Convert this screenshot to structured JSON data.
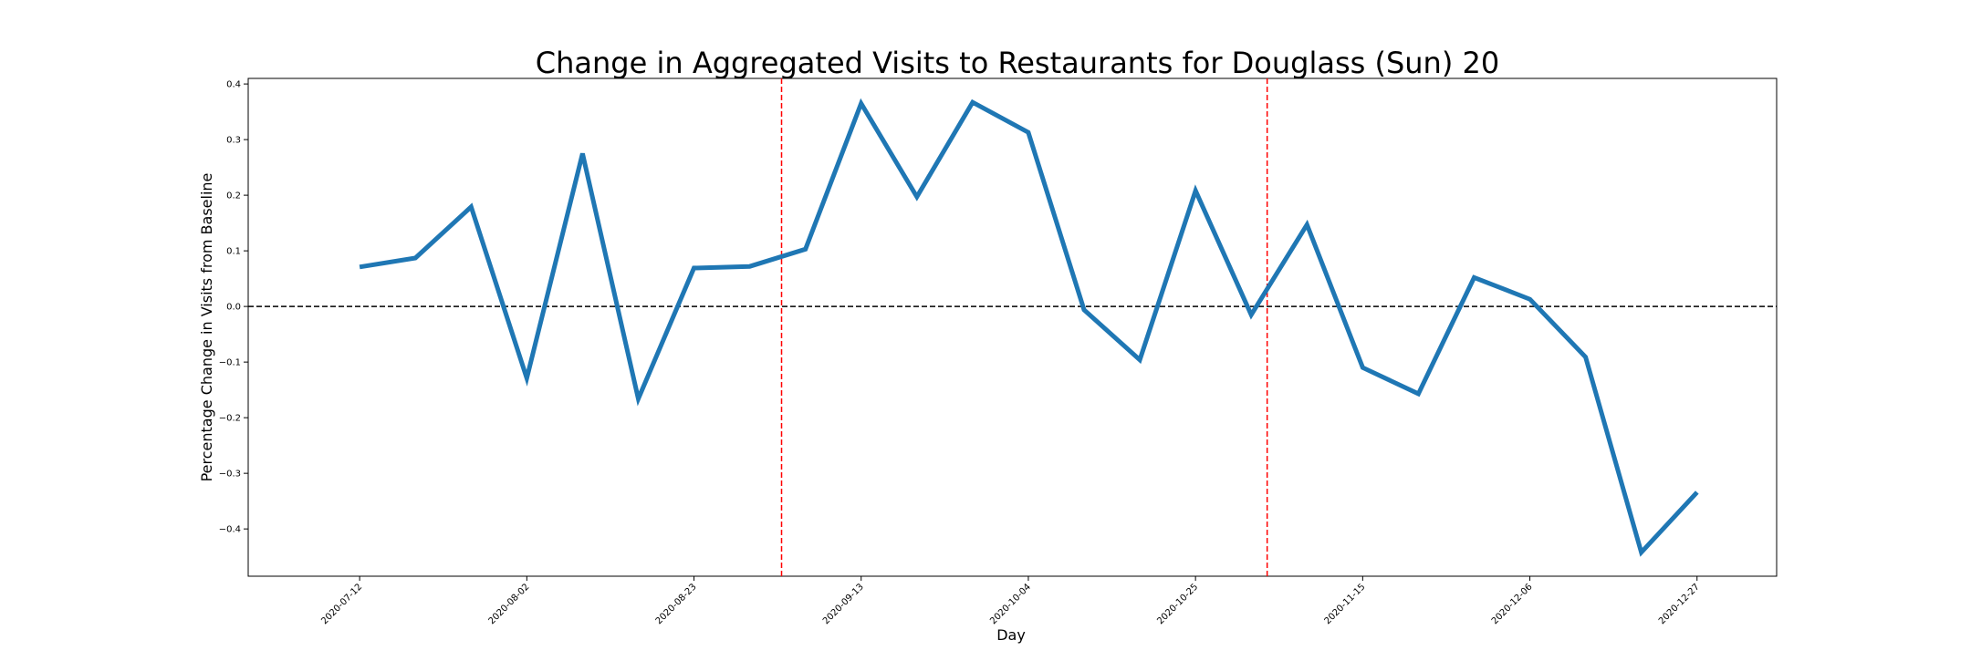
{
  "chart_data": {
    "type": "line",
    "title": "Change in Aggregated Visits to Restaurants for Douglass (Sun) 20",
    "xlabel": "Day",
    "ylabel": "Percentage Change in Visits from Baseline",
    "xlim": [
      "2020-06-28",
      "2021-01-06"
    ],
    "ylim": [
      -0.485,
      0.41
    ],
    "grid": false,
    "legend": "none",
    "x_ticks": [
      "2020-07-12",
      "2020-08-02",
      "2020-08-23",
      "2020-09-13",
      "2020-10-04",
      "2020-10-25",
      "2020-11-15",
      "2020-12-06",
      "2020-12-27"
    ],
    "y_ticks": [
      -0.4,
      -0.3,
      -0.2,
      -0.1,
      0.0,
      0.1,
      0.2,
      0.3,
      0.4
    ],
    "y_tick_labels": [
      "−0.4",
      "−0.3",
      "−0.2",
      "−0.1",
      "0.0",
      "0.1",
      "0.2",
      "0.3",
      "0.4"
    ],
    "series": [
      {
        "color": "#1f77b4",
        "x": [
          "2020-07-12",
          "2020-07-19",
          "2020-07-26",
          "2020-08-02",
          "2020-08-09",
          "2020-08-16",
          "2020-08-23",
          "2020-08-30",
          "2020-09-06",
          "2020-09-13",
          "2020-09-20",
          "2020-09-27",
          "2020-10-04",
          "2020-10-11",
          "2020-10-18",
          "2020-10-25",
          "2020-11-01",
          "2020-11-08",
          "2020-11-15",
          "2020-11-22",
          "2020-11-29",
          "2020-12-06",
          "2020-12-13",
          "2020-12-20",
          "2020-12-27"
        ],
        "values": [
          0.071,
          0.087,
          0.179,
          -0.129,
          0.275,
          -0.166,
          0.069,
          0.072,
          0.103,
          0.365,
          0.197,
          0.367,
          0.313,
          -0.006,
          -0.096,
          0.208,
          -0.015,
          0.147,
          -0.11,
          -0.157,
          0.052,
          0.013,
          -0.091,
          -0.442,
          -0.334
        ]
      }
    ],
    "reference_lines": {
      "horizontal": {
        "y": 0.0,
        "color": "#000000",
        "style": "dashed"
      },
      "vertical": [
        {
          "x": "2020-09-03",
          "color": "#ff0000",
          "style": "dashed"
        },
        {
          "x": "2020-11-03",
          "color": "#ff0000",
          "style": "dashed"
        }
      ]
    }
  }
}
